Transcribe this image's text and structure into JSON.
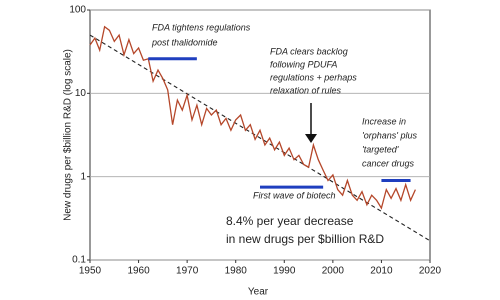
{
  "chart_data": {
    "type": "line",
    "x_label": "Year",
    "y_label": "New drugs per $billion R&D (log scale)",
    "log_y": true,
    "grid": true,
    "grid_color": "#aaaaaa",
    "xlim": [
      1950,
      2020
    ],
    "xticks": [
      1950,
      1960,
      1970,
      1980,
      1990,
      2000,
      2010,
      2020
    ],
    "ylim": [
      0.1,
      100
    ],
    "yticks": [
      0.1,
      1,
      10,
      100
    ],
    "x": [
      1950,
      1951,
      1952,
      1953,
      1954,
      1955,
      1956,
      1957,
      1958,
      1959,
      1960,
      1961,
      1962,
      1963,
      1964,
      1965,
      1966,
      1967,
      1968,
      1969,
      1970,
      1971,
      1972,
      1973,
      1974,
      1975,
      1976,
      1977,
      1978,
      1979,
      1980,
      1981,
      1982,
      1983,
      1984,
      1985,
      1986,
      1987,
      1988,
      1989,
      1990,
      1991,
      1992,
      1993,
      1994,
      1995,
      1996,
      1997,
      1998,
      1999,
      2000,
      2001,
      2002,
      2003,
      2004,
      2005,
      2006,
      2007,
      2008,
      2009,
      2010,
      2011,
      2012,
      2013,
      2014,
      2015,
      2016,
      2017
    ],
    "series": [
      {
        "color": "#b5472a",
        "values": [
          38,
          46,
          33,
          63,
          57,
          42,
          50,
          29,
          44,
          30,
          35,
          25,
          26,
          14,
          19,
          15,
          11,
          4.2,
          8.3,
          6.3,
          9.5,
          4.8,
          7.2,
          4.2,
          6.6,
          5.5,
          6.3,
          4.2,
          5,
          3.6,
          4.8,
          5.5,
          3.6,
          4.2,
          2.8,
          3.6,
          2.4,
          2.9,
          2.1,
          2.6,
          1.8,
          2.2,
          1.6,
          1.8,
          1.4,
          1.3,
          2.4,
          1.6,
          1.2,
          0.9,
          1.05,
          0.7,
          0.6,
          0.9,
          0.6,
          0.52,
          0.66,
          0.46,
          0.6,
          0.52,
          0.42,
          0.7,
          0.55,
          0.72,
          0.52,
          0.8,
          0.52,
          0.7
        ]
      }
    ],
    "trend": {
      "color": "#222222",
      "x": [
        1950,
        2020
      ],
      "values": [
        50,
        0.17
      ]
    },
    "periods": [
      {
        "color": "#1f3fbf",
        "start": 1962,
        "end": 1972,
        "level": 26
      },
      {
        "color": "#1f3fbf",
        "start": 1985,
        "end": 1998,
        "level": 0.75
      },
      {
        "color": "#1f3fbf",
        "start": 2010,
        "end": 2016,
        "level": 0.9
      }
    ],
    "annotations": [
      {
        "lines": [
          "FDA tightens regulations",
          "post thalidomide"
        ]
      },
      {
        "lines": [
          "FDA clears backlog",
          "following PDUFA",
          "regulations + perhaps",
          "relaxation of rules"
        ]
      },
      {
        "lines": [
          "First wave of biotech"
        ]
      },
      {
        "lines": [
          "Increase in",
          "'orphans' plus",
          "'targeted'",
          "cancer drugs"
        ]
      },
      {
        "lines": [
          "8.4% per year decrease",
          "in new drugs per $billion R&D"
        ]
      }
    ]
  }
}
